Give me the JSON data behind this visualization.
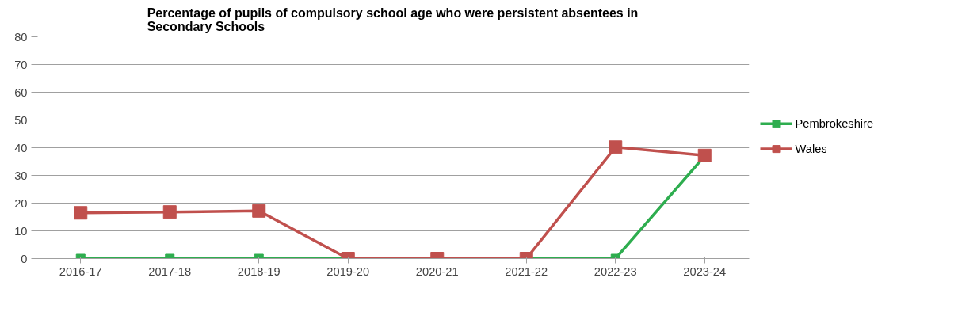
{
  "chart_data": {
    "type": "line",
    "title": "Percentage of pupils of compulsory school age who were persistent absentees in Secondary Schools",
    "categories": [
      "2016-17",
      "2017-18",
      "2018-19",
      "2019-20",
      "2020-21",
      "2021-22",
      "2022-23",
      "2023-24"
    ],
    "series": [
      {
        "name": "Pembrokeshire",
        "color": "#2ead4f",
        "values": [
          0,
          0,
          0,
          0,
          0,
          0,
          0,
          37
        ]
      },
      {
        "name": "Wales",
        "color": "#c0504d",
        "values": [
          16.5,
          16.8,
          17.2,
          0,
          0,
          0,
          40.2,
          37.2
        ]
      }
    ],
    "ylim": [
      0,
      80
    ],
    "yticks": [
      0,
      10,
      20,
      30,
      40,
      50,
      60,
      70,
      80
    ],
    "grid": "y",
    "legend": "right",
    "marker": "square",
    "line_style": "solid"
  }
}
